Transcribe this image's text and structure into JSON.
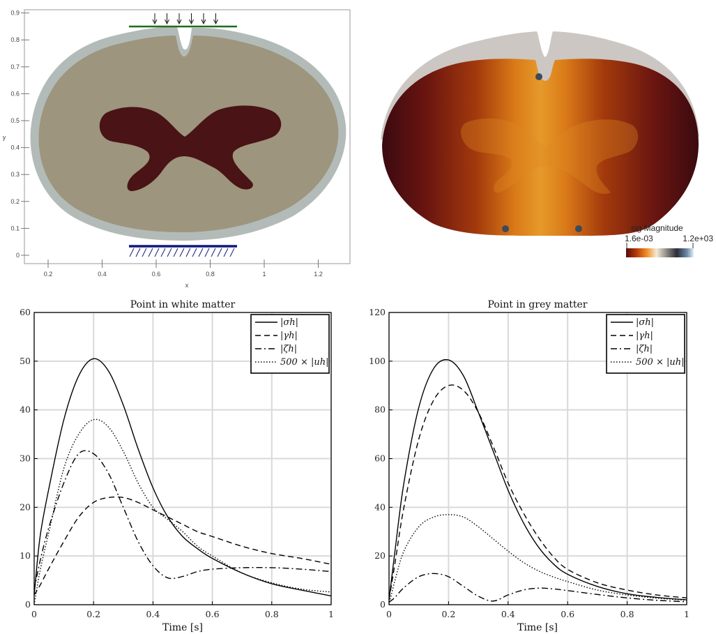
{
  "mesh_panel": {
    "xlabel": "x",
    "ylabel": "y",
    "xticks": [
      "0.2",
      "0.4",
      "0.6",
      "0.8",
      "1",
      "1.2"
    ],
    "yticks": [
      "0",
      "0.1",
      "0.2",
      "0.3",
      "0.4",
      "0.5",
      "0.6",
      "0.7",
      "0.8",
      "0.9"
    ],
    "colors": {
      "white_matter": "#9d957d",
      "grey_matter": "#4a1315",
      "pia": "#b3bbb8",
      "top_bc": "#1f6b1f",
      "bottom_bc": "#101880"
    }
  },
  "stress_panel": {
    "colorbar_title": "sig Magnitude",
    "colorbar_min": "1.6e-03",
    "colorbar_max": "1.2e+03"
  },
  "chart_data": [
    {
      "type": "line",
      "title": "Point in white matter",
      "xlabel": "Time [s]",
      "ylabel": "",
      "xlim": [
        0,
        1
      ],
      "ylim": [
        0,
        60
      ],
      "xticks": [
        "0",
        "0.2",
        "0.4",
        "0.6",
        "0.8",
        "1"
      ],
      "yticks": [
        "0",
        "10",
        "20",
        "30",
        "40",
        "50",
        "60"
      ],
      "grid": true,
      "legend_position": "top-right",
      "x": [
        0,
        0.02,
        0.05,
        0.1,
        0.15,
        0.2,
        0.25,
        0.3,
        0.35,
        0.4,
        0.45,
        0.5,
        0.55,
        0.6,
        0.7,
        0.8,
        0.9,
        1.0
      ],
      "series": [
        {
          "name": "|σh|",
          "dash": "solid",
          "values": [
            2,
            14,
            24,
            38,
            47,
            50.5,
            48,
            41,
            32,
            24,
            18,
            14,
            11.5,
            9.5,
            6.5,
            4.3,
            3.0,
            1.8
          ]
        },
        {
          "name": "|γh|",
          "dash": "dashed",
          "values": [
            2,
            4,
            7.5,
            13,
            18,
            21,
            22,
            22,
            21,
            19.5,
            18,
            16.5,
            15,
            14,
            12,
            10.5,
            9.5,
            8.3
          ]
        },
        {
          "name": "|ζh|",
          "dash": "dashdot",
          "values": [
            3,
            9,
            16,
            25,
            31,
            31,
            27,
            20,
            13,
            8,
            5.5,
            5.8,
            6.8,
            7.3,
            7.6,
            7.6,
            7.3,
            6.8
          ]
        },
        {
          "name": "500 × |uh|",
          "dash": "dotted",
          "values": [
            0,
            7,
            15,
            28,
            35,
            38,
            36.5,
            31.5,
            25,
            20,
            17.5,
            15,
            12,
            10,
            6.5,
            4.5,
            3.2,
            2.6
          ]
        }
      ]
    },
    {
      "type": "line",
      "title": "Point in grey matter",
      "xlabel": "Time [s]",
      "ylabel": "",
      "xlim": [
        0,
        1
      ],
      "ylim": [
        0,
        120
      ],
      "xticks": [
        "0",
        "0.2",
        "0.4",
        "0.6",
        "0.8",
        "1"
      ],
      "yticks": [
        "0",
        "20",
        "40",
        "60",
        "80",
        "100",
        "120"
      ],
      "grid": true,
      "legend_position": "top-right",
      "x": [
        0,
        0.02,
        0.05,
        0.1,
        0.15,
        0.2,
        0.25,
        0.3,
        0.35,
        0.4,
        0.45,
        0.5,
        0.55,
        0.6,
        0.7,
        0.8,
        0.9,
        1.0
      ],
      "series": [
        {
          "name": "|σh|",
          "dash": "solid",
          "values": [
            2,
            22,
            50,
            81,
            97,
            100.5,
            94,
            79,
            63,
            47,
            34,
            24,
            17,
            12.5,
            7.5,
            4.5,
            3.0,
            2.0
          ]
        },
        {
          "name": "|γh|",
          "dash": "dashed",
          "values": [
            2,
            17,
            40,
            68,
            84,
            90,
            88,
            79,
            65,
            50,
            38,
            28,
            20,
            14.5,
            9,
            6,
            4,
            2.8
          ]
        },
        {
          "name": "|ζh|",
          "dash": "dashdot",
          "values": [
            1,
            3,
            7,
            11.5,
            12.8,
            11.5,
            7.5,
            3.5,
            1.5,
            4,
            6,
            6.8,
            6.5,
            5.8,
            4.2,
            2.8,
            1.8,
            1.2
          ]
        },
        {
          "name": "500 × |uh|",
          "dash": "dotted",
          "values": [
            0,
            10,
            22,
            32,
            36,
            37,
            36,
            32,
            27,
            22,
            17.5,
            14,
            11.5,
            9.5,
            6,
            4,
            2.7,
            1.8
          ]
        }
      ]
    }
  ]
}
